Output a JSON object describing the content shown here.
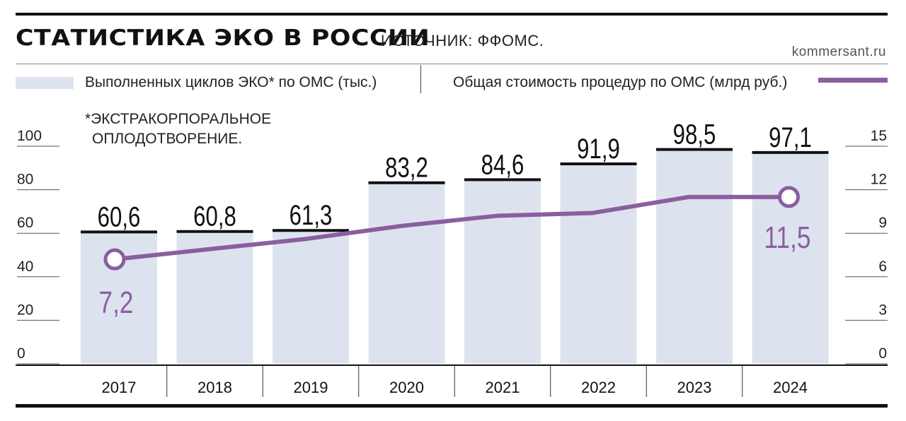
{
  "header": {
    "title": "СТАТИСТИКА ЭКО В РОССИИ",
    "source": "ИСТОЧНИК: ФФОМС.",
    "site": "kommersant.ru"
  },
  "legend": {
    "bars": "Выполненных циклов ЭКО* по ОМС (тыс.)",
    "line": "Общая стоимость процедур по ОМС (млрд руб.)"
  },
  "footnote": {
    "line1": "*ЭКСТРАКОРПОРАЛЬНОЕ",
    "line2": "ОПЛОДОТВОРЕНИЕ."
  },
  "colors": {
    "bar": "#dde3ee",
    "line": "#8b5ea0",
    "ink": "#111111"
  },
  "chart_data": {
    "type": "bar",
    "categories": [
      "2017",
      "2018",
      "2019",
      "2020",
      "2021",
      "2022",
      "2023",
      "2024"
    ],
    "series": [
      {
        "type": "bar",
        "axis": "left",
        "values": [
          60.6,
          60.8,
          61.3,
          83.2,
          84.6,
          91.9,
          98.5,
          97.1
        ],
        "labels": [
          "60,6",
          "60,8",
          "61,3",
          "83,2",
          "84,6",
          "91,9",
          "98,5",
          "97,1"
        ]
      },
      {
        "type": "line",
        "axis": "right",
        "values": [
          7.2,
          7.9,
          8.6,
          9.5,
          10.2,
          10.4,
          11.5,
          11.5
        ],
        "labels": [
          "7,2",
          "",
          "",
          "",
          "",
          "",
          "",
          "11,5"
        ]
      }
    ],
    "y_left": {
      "ticks": [
        "0",
        "20",
        "40",
        "60",
        "80",
        "100"
      ],
      "lim": [
        0,
        100
      ]
    },
    "y_right": {
      "ticks": [
        "0",
        "3",
        "6",
        "9",
        "12",
        "15"
      ],
      "lim": [
        0,
        15
      ]
    }
  }
}
